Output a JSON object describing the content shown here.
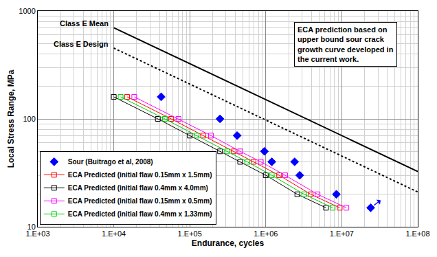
{
  "chart_data": {
    "type": "scatter",
    "x_label": "Endurance, cycles",
    "y_label": "Local Stress Range, MPa",
    "annotation": [
      "ECA prediction based on",
      "upper bound sour crack",
      "growth curve developed in",
      "the current work."
    ],
    "log": true,
    "grid": true,
    "legend": "lower left",
    "xlim": [
      1000,
      100000000
    ],
    "ylim": [
      10,
      1000
    ],
    "xticks": [
      {
        "value": 1000,
        "label": "1.E+03"
      },
      {
        "value": 10000,
        "label": "1.E+04"
      },
      {
        "value": 100000,
        "label": "1.E+05"
      },
      {
        "value": 1000000,
        "label": "1.E+06"
      },
      {
        "value": 10000000,
        "label": "1.E+07"
      },
      {
        "value": 100000000,
        "label": "1.E+08"
      }
    ],
    "yticks": [
      10,
      100,
      1000
    ],
    "series": [
      {
        "name": "Class E Mean",
        "type": "line",
        "line_style": "solid",
        "color": "#000000",
        "x": [
          10000,
          100000000
        ],
        "values": [
          700,
          32.5
        ]
      },
      {
        "name": "Class E Design",
        "type": "line",
        "line_style": "dotted",
        "color": "#000000",
        "x": [
          10000,
          100000000
        ],
        "values": [
          453,
          21
        ]
      },
      {
        "name": "Sour (Buitrago et al, 2008)",
        "type": "scatter",
        "marker": "diamond",
        "color": "#0000ff",
        "x": [
          42000,
          250000,
          420000,
          960000,
          1200000,
          2400000,
          2800000,
          8500000,
          24000000
        ],
        "values": [
          160,
          100,
          70,
          50,
          40,
          40,
          30,
          20,
          15
        ]
      },
      {
        "name": "ECA Predicted (initial flaw 0.15mm x 1.5mm)",
        "type": "line",
        "marker": "square-open",
        "line_style": "solid",
        "color": "#ff0000",
        "x": [
          15000,
          57000,
          150000,
          380000,
          690000,
          1500000,
          3900000,
          9400000
        ],
        "values": [
          160,
          100,
          70,
          50,
          40,
          30,
          20,
          15
        ]
      },
      {
        "name": "ECA Predicted (initial flaw 0.4mm x 4.0mm)",
        "type": "line",
        "marker": "square-open",
        "line_style": "solid",
        "color": "#000000",
        "x": [
          10000,
          38000,
          100000,
          250000,
          460000,
          1000000,
          2600000,
          6200000
        ],
        "values": [
          160,
          100,
          70,
          50,
          40,
          30,
          20,
          15
        ]
      },
      {
        "name": "ECA Predicted (initial flaw 0.15mm x 0.5mm)",
        "type": "line",
        "marker": "square-open",
        "line_style": "solid",
        "color": "#ff00ff",
        "x": [
          18600,
          71000,
          190000,
          460000,
          860000,
          1800000,
          4800000,
          11500000
        ],
        "values": [
          160,
          100,
          70,
          50,
          40,
          30,
          20,
          15
        ]
      },
      {
        "name": "ECA Predicted (initial flaw 0.4mm x 1.33mm)",
        "type": "line",
        "marker": "square-open",
        "line_style": "solid",
        "color": "#00cc00",
        "x": [
          12300,
          47000,
          123000,
          310000,
          570000,
          1200000,
          3200000,
          7600000
        ],
        "values": [
          160,
          100,
          70,
          50,
          40,
          30,
          20,
          15
        ]
      }
    ]
  }
}
